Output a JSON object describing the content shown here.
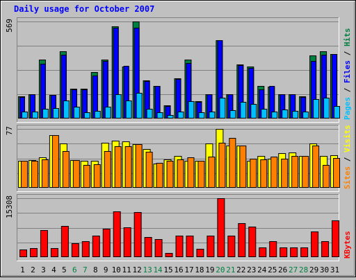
{
  "chart_data": {
    "type": "bar",
    "title": "Daily usage for October 2007",
    "categories": [
      "1",
      "2",
      "3",
      "4",
      "5",
      "6",
      "7",
      "8",
      "9",
      "10",
      "11",
      "12",
      "13",
      "14",
      "15",
      "16",
      "17",
      "18",
      "19",
      "20",
      "21",
      "22",
      "23",
      "24",
      "25",
      "26",
      "27",
      "28",
      "29",
      "30",
      "31"
    ],
    "weekend_days": [
      "6",
      "7",
      "13",
      "14",
      "20",
      "21",
      "27",
      "28"
    ],
    "panels": [
      {
        "name": "top",
        "scale_max": 569,
        "scale_label": "569",
        "legend": [
          "Pages",
          "/",
          "Files",
          "/",
          "Hits"
        ],
        "series": [
          {
            "name": "Hits",
            "color": "#008040",
            "values": [
              131,
              144,
              344,
              140,
              396,
              175,
              175,
              273,
              344,
              539,
              306,
              569,
              224,
              189,
              77,
              237,
              344,
              103,
              144,
              461,
              144,
              315,
              306,
              189,
              185,
              144,
              144,
              131,
              370,
              396,
              380
            ]
          },
          {
            "name": "Files",
            "color": "#0000ff",
            "values": [
              128,
              141,
              320,
              137,
              373,
              172,
              172,
              252,
              339,
              534,
              309,
              534,
              219,
              189,
              74,
              231,
              326,
              98,
              141,
              459,
              141,
              311,
              298,
              172,
              189,
              141,
              141,
              128,
              339,
              373,
              380
            ]
          },
          {
            "name": "Pages",
            "color": "#00c0ff",
            "values": [
              39,
              41,
              56,
              61,
              107,
              70,
              35,
              43,
              70,
              141,
              107,
              152,
              56,
              35,
              22,
              39,
              102,
              35,
              39,
              122,
              48,
              98,
              87,
              56,
              39,
              52,
              43,
              39,
              113,
              122,
              74
            ]
          }
        ]
      },
      {
        "name": "middle",
        "scale_max": 77,
        "scale_label": "77",
        "legend": [
          "Sites",
          "/",
          "Visits"
        ],
        "series": [
          {
            "name": "Visits",
            "color": "#ffff00",
            "values": [
              35,
              36,
              40,
              69,
              58,
              36,
              35,
              35,
              59,
              62,
              61,
              57,
              51,
              32,
              37,
              42,
              35,
              35,
              58,
              77,
              55,
              55,
              35,
              42,
              38,
              45,
              46,
              42,
              58,
              42,
              43
            ]
          },
          {
            "name": "Sites",
            "color": "#ff8000",
            "values": [
              35,
              35,
              37,
              69,
              48,
              36,
              30,
              31,
              48,
              54,
              54,
              57,
              47,
              33,
              35,
              37,
              40,
              35,
              41,
              59,
              65,
              55,
              38,
              37,
              41,
              38,
              42,
              42,
              55,
              30,
              39
            ]
          }
        ]
      },
      {
        "name": "bottom",
        "scale_max": 15308,
        "scale_label": "15308",
        "legend": [
          "KBytes"
        ],
        "series": [
          {
            "name": "KBytes",
            "color": "#ff0000",
            "values": [
              1994,
              2301,
              7061,
              2301,
              8137,
              3530,
              4143,
              5526,
              7368,
              11972,
              7828,
              11665,
              5219,
              4604,
              1075,
              5526,
              5526,
              2149,
              5526,
              15308,
              5526,
              8748,
              7982,
              2609,
              4143,
              2609,
              2609,
              2609,
              6601,
              4143,
              9515
            ]
          }
        ]
      }
    ],
    "legend_colors": {
      "Pages": "#00c0ff",
      "Files": "#0000ff",
      "Hits": "#008040",
      "Sites": "#ff8000",
      "Visits": "#ffff00",
      "KBytes": "#ff0000",
      "separator": "#000000"
    },
    "weekday_label_color": "#000000",
    "weekend_label_color": "#008040",
    "title_color": "#0000ff",
    "grid": true
  }
}
